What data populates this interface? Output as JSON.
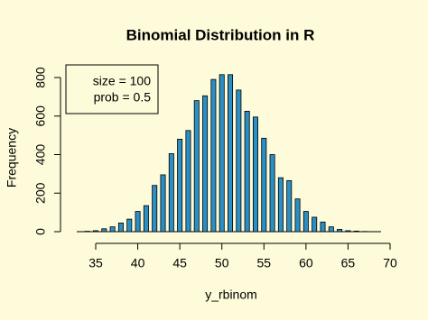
{
  "chart_data": {
    "type": "bar",
    "title": "Binomial Distribution in R",
    "x_label": "y_rbinom",
    "y_label": "Frequency",
    "x": [
      34,
      35,
      36,
      37,
      38,
      39,
      40,
      41,
      42,
      43,
      44,
      45,
      46,
      47,
      48,
      49,
      50,
      51,
      52,
      53,
      54,
      55,
      56,
      57,
      58,
      59,
      60,
      61,
      62,
      63,
      64,
      65,
      66,
      67
    ],
    "values": [
      2,
      5,
      15,
      25,
      45,
      65,
      105,
      135,
      240,
      295,
      405,
      480,
      525,
      680,
      705,
      790,
      815,
      815,
      735,
      625,
      595,
      485,
      400,
      280,
      265,
      170,
      105,
      75,
      50,
      25,
      12,
      5,
      3,
      1
    ],
    "color": "#2c8fc4",
    "xlim": [
      35,
      70
    ],
    "xticks": [
      35,
      40,
      45,
      50,
      55,
      60,
      65,
      70
    ],
    "ylim": [
      0,
      800
    ],
    "yticks": [
      0,
      200,
      400,
      600,
      800
    ],
    "legend_texts": [
      "size = 100",
      "prob = 0.5"
    ],
    "legend_position": "upper left"
  }
}
